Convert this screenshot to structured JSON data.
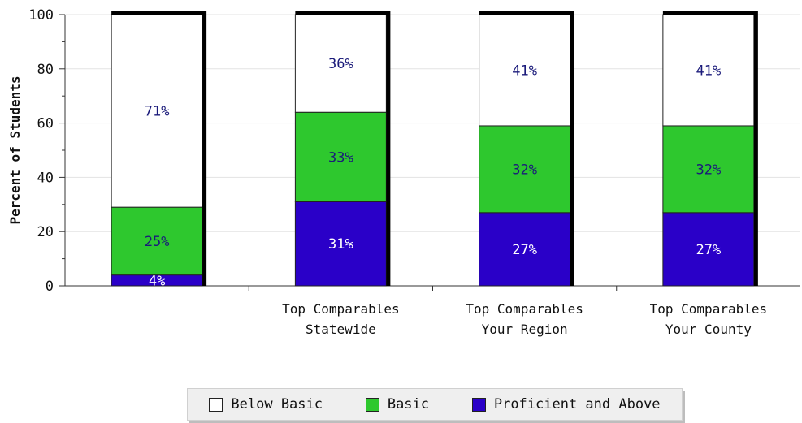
{
  "chart_data": {
    "type": "bar",
    "stacked": true,
    "ylabel": "Percent of Students",
    "xlabel": "",
    "ylim": [
      0,
      100
    ],
    "yticks": [
      "0",
      "20",
      "40",
      "60",
      "80",
      "100"
    ],
    "grid": true,
    "legend_position": "bottom",
    "categories": [
      [
        ""
      ],
      [
        "Top Comparables",
        "Statewide"
      ],
      [
        "Top Comparables",
        "Your Region"
      ],
      [
        "Top Comparables",
        "Your County"
      ]
    ],
    "series": [
      {
        "name": "Proficient and Above",
        "color": "#2a00c8",
        "values": [
          4,
          31,
          27,
          27
        ],
        "labels": [
          "4%",
          "31%",
          "27%",
          "27%"
        ]
      },
      {
        "name": "Basic",
        "color": "#2ec82e",
        "values": [
          25,
          33,
          32,
          32
        ],
        "labels": [
          "25%",
          "33%",
          "32%",
          "32%"
        ]
      },
      {
        "name": "Below Basic",
        "color": "#ffffff",
        "values": [
          71,
          36,
          41,
          41
        ],
        "labels": [
          "71%",
          "36%",
          "41%",
          "41%"
        ]
      }
    ]
  },
  "legend": {
    "items": [
      {
        "label": "Below Basic",
        "color": "#ffffff"
      },
      {
        "label": "Basic",
        "color": "#2ec82e"
      },
      {
        "label": "Proficient and Above",
        "color": "#2a00c8"
      }
    ]
  }
}
